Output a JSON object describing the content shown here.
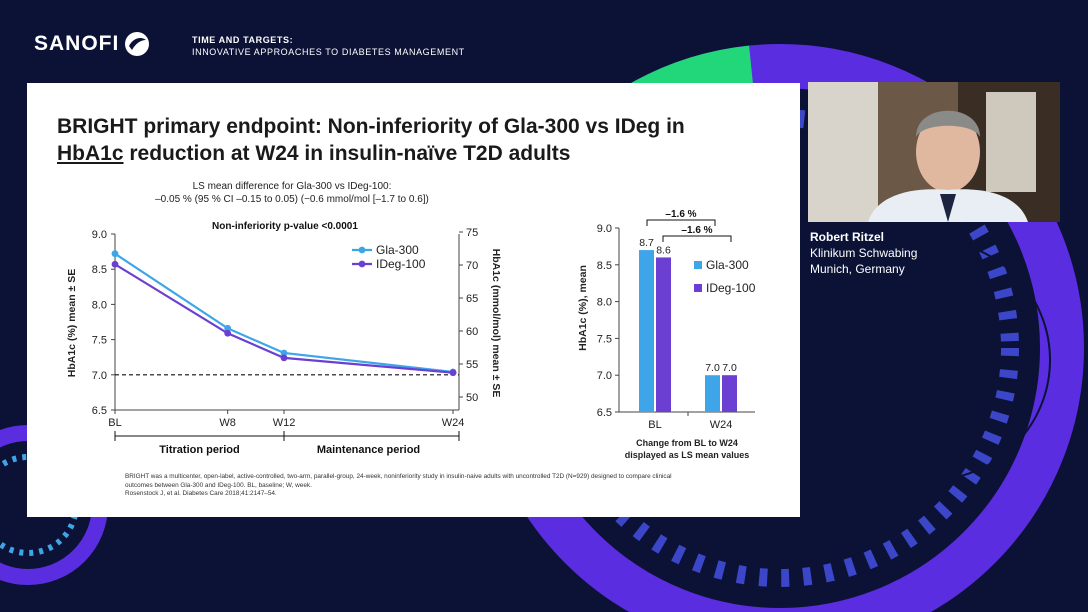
{
  "header": {
    "brand": "SANOFI",
    "event_line1": "TIME AND TARGETS:",
    "event_line2": "INNOVATIVE APPROACHES TO DIABETES MANAGEMENT"
  },
  "slide": {
    "title_part1": "BRIGHT primary endpoint: Non-inferiority of Gla-300 vs IDeg in",
    "title_underlined": "HbA1c",
    "title_part2": " reduction at W24 in insulin-naïve T2D adults",
    "note_line1": "LS mean difference for Gla-300 vs IDeg-100:",
    "note_line2": "–0.05 % (95 % CI –0.15 to 0.05) (−0.6 mmol/mol [–1.7 to 0.6])",
    "footnote_line1": "BRIGHT was a multicenter, open-label, active-controlled, two-arm, parallel-group, 24-week, noninferiority study in insulin-naive adults with uncontrolled T2D (N=929) designed to compare clinical",
    "footnote_line2": "outcomes between Gla-300 and IDeg-100. BL, baseline; W, week.",
    "footnote_line3": "Rosenstock J, et al. Diabetes Care 2018;41:2147–54."
  },
  "speaker": {
    "name": "Robert Ritzel",
    "affiliation": "Klinikum Schwabing",
    "location": "Munich, Germany"
  },
  "colors": {
    "background": "#0c1236",
    "gla300": "#3ea6e8",
    "ideg100": "#6a3fd2",
    "accent_green": "#22d67a",
    "accent_purple": "#5a2ee0"
  },
  "chart_data": [
    {
      "type": "line",
      "title": "Non-inferiority p-value <0.0001",
      "x": [
        "BL",
        "W8",
        "W12",
        "W24"
      ],
      "x_weeks": [
        0,
        8,
        12,
        24
      ],
      "series": [
        {
          "name": "Gla-300",
          "values": [
            8.72,
            7.66,
            7.31,
            7.04
          ]
        },
        {
          "name": "IDeg-100",
          "values": [
            8.57,
            7.59,
            7.24,
            7.03
          ]
        }
      ],
      "ylabel": "HbA1c (%) mean ± SE",
      "ylim": [
        6.5,
        9.0
      ],
      "yticks": [
        "6.5",
        "7.0",
        "7.5",
        "8.0",
        "8.5",
        "9.0"
      ],
      "y2label": "HbA1c (mmol/mol) mean ± SE",
      "y2ticks": [
        "50",
        "55",
        "60",
        "65",
        "70",
        "75"
      ],
      "reference_line": 7.0,
      "periods": [
        "Titration period",
        "Maintenance period"
      ],
      "legend": "top-right"
    },
    {
      "type": "bar",
      "categories": [
        "BL",
        "W24"
      ],
      "series": [
        {
          "name": "Gla-300",
          "values": [
            8.7,
            7.0
          ]
        },
        {
          "name": "IDeg-100",
          "values": [
            8.6,
            7.0
          ]
        }
      ],
      "data_labels": [
        [
          "8.7",
          "8.6"
        ],
        [
          "7.0",
          "7.0"
        ]
      ],
      "ylabel": "HbA1c (%), mean",
      "ylim": [
        6.5,
        9.0
      ],
      "yticks": [
        "6.5",
        "7.0",
        "7.5",
        "8.0",
        "8.5",
        "9.0"
      ],
      "xlabel_line1": "Change from BL to W24",
      "xlabel_line2": "displayed as LS mean values",
      "annotations": [
        "–1.6 %",
        "–1.6 %"
      ],
      "legend": "top-right"
    }
  ]
}
